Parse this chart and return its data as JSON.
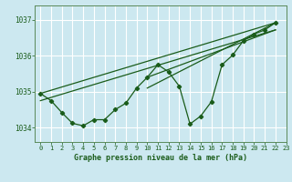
{
  "title": "Graphe pression niveau de la mer (hPa)",
  "background_color": "#cce8f0",
  "grid_color": "#ffffff",
  "line_color": "#1a5c1a",
  "marker_color": "#1a5c1a",
  "xlim": [
    -0.5,
    23
  ],
  "ylim": [
    1033.6,
    1037.4
  ],
  "yticks": [
    1034,
    1035,
    1036,
    1037
  ],
  "xticks": [
    0,
    1,
    2,
    3,
    4,
    5,
    6,
    7,
    8,
    9,
    10,
    11,
    12,
    13,
    14,
    15,
    16,
    17,
    18,
    19,
    20,
    21,
    22,
    23
  ],
  "main_x": [
    0,
    1,
    2,
    3,
    4,
    5,
    6,
    7,
    8,
    9,
    10,
    11,
    12,
    13,
    14,
    15,
    16,
    17,
    18,
    19,
    20,
    21,
    22
  ],
  "main_y": [
    1034.95,
    1034.75,
    1034.42,
    1034.12,
    1034.05,
    1034.22,
    1034.22,
    1034.5,
    1034.68,
    1035.1,
    1035.4,
    1035.75,
    1035.55,
    1035.15,
    1034.1,
    1034.32,
    1034.72,
    1035.75,
    1036.02,
    1036.42,
    1036.6,
    1036.72,
    1036.92
  ],
  "trend_lines": [
    {
      "x": [
        0,
        22
      ],
      "y": [
        1034.95,
        1036.92
      ]
    },
    {
      "x": [
        0,
        22
      ],
      "y": [
        1034.75,
        1036.72
      ]
    },
    {
      "x": [
        10,
        22
      ],
      "y": [
        1035.1,
        1036.92
      ]
    },
    {
      "x": [
        10,
        22
      ],
      "y": [
        1035.4,
        1036.72
      ]
    }
  ],
  "spine_color": "#5a8a5a",
  "title_fontsize": 6.0,
  "tick_fontsize": 5.0,
  "line_width": 0.9,
  "marker_size": 2.2
}
